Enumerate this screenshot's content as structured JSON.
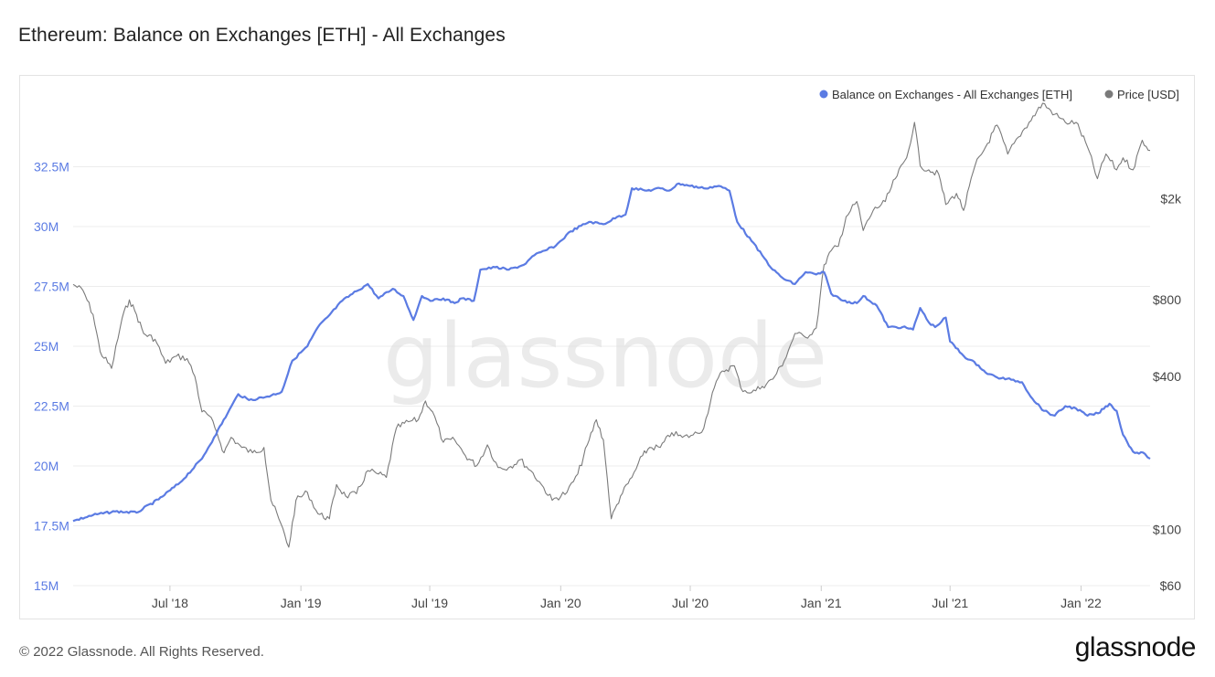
{
  "page": {
    "title": "Ethereum: Balance on Exchanges [ETH] - All Exchanges",
    "copyright": "© 2022 Glassnode. All Rights Reserved.",
    "logo": "glassnode",
    "watermark": "glassnode"
  },
  "colors": {
    "balance": "#5b7be3",
    "price": "#7a7a7a",
    "grid": "#ececec",
    "left_tick": "#5b7be3",
    "right_tick": "#444444"
  },
  "chart_data": {
    "type": "line",
    "title": "Ethereum: Balance on Exchanges [ETH] - All Exchanges",
    "legend_position": "top-right",
    "grid": true,
    "x_ticks": [
      "Jul '18",
      "Jan '19",
      "Jul '19",
      "Jan '20",
      "Jul '20",
      "Jan '21",
      "Jul '21",
      "Jan '22"
    ],
    "x_tick_dates": [
      "2018-07-01",
      "2019-01-01",
      "2019-07-01",
      "2020-01-01",
      "2020-07-01",
      "2021-01-01",
      "2021-07-01",
      "2022-01-01"
    ],
    "x_range": [
      "2018-02-15",
      "2022-04-08"
    ],
    "y_left": {
      "unit": "ETH",
      "range": [
        15000000,
        35000000
      ],
      "ticks": [
        15000000,
        17500000,
        20000000,
        22500000,
        25000000,
        27500000,
        30000000,
        32500000
      ],
      "tick_labels": [
        "15M",
        "17.5M",
        "20M",
        "22.5M",
        "25M",
        "27.5M",
        "30M",
        "32.5M"
      ]
    },
    "y_right": {
      "unit": "USD",
      "scale": "log",
      "range": [
        60,
        4600
      ],
      "ticks": [
        60,
        100,
        400,
        800,
        2000
      ],
      "tick_labels": [
        "$60",
        "$100",
        "$400",
        "$800",
        "$2k"
      ]
    },
    "series": [
      {
        "name": "Balance on Exchanges - All Exchanges [ETH]",
        "axis": "left",
        "points": [
          [
            "2018-02-15",
            17700000
          ],
          [
            "2018-03-15",
            17950000
          ],
          [
            "2018-04-15",
            18100000
          ],
          [
            "2018-05-15",
            18050000
          ],
          [
            "2018-06-15",
            18600000
          ],
          [
            "2018-07-15",
            19300000
          ],
          [
            "2018-08-15",
            20300000
          ],
          [
            "2018-09-01",
            21200000
          ],
          [
            "2018-09-20",
            22200000
          ],
          [
            "2018-10-05",
            23000000
          ],
          [
            "2018-10-20",
            22750000
          ],
          [
            "2018-11-15",
            22900000
          ],
          [
            "2018-12-05",
            23100000
          ],
          [
            "2018-12-20",
            24400000
          ],
          [
            "2019-01-10",
            25000000
          ],
          [
            "2019-01-25",
            25800000
          ],
          [
            "2019-02-10",
            26300000
          ],
          [
            "2019-02-28",
            26900000
          ],
          [
            "2019-03-20",
            27300000
          ],
          [
            "2019-04-05",
            27600000
          ],
          [
            "2019-04-20",
            27000000
          ],
          [
            "2019-05-10",
            27400000
          ],
          [
            "2019-05-25",
            27100000
          ],
          [
            "2019-06-08",
            26100000
          ],
          [
            "2019-06-20",
            27100000
          ],
          [
            "2019-07-05",
            26900000
          ],
          [
            "2019-07-20",
            27000000
          ],
          [
            "2019-08-05",
            26800000
          ],
          [
            "2019-08-15",
            27000000
          ],
          [
            "2019-09-01",
            26900000
          ],
          [
            "2019-09-10",
            28200000
          ],
          [
            "2019-10-01",
            28300000
          ],
          [
            "2019-10-20",
            28200000
          ],
          [
            "2019-11-10",
            28400000
          ],
          [
            "2019-11-25",
            28800000
          ],
          [
            "2019-12-10",
            29000000
          ],
          [
            "2019-12-25",
            29200000
          ],
          [
            "2020-01-15",
            29800000
          ],
          [
            "2020-02-10",
            30200000
          ],
          [
            "2020-03-01",
            30100000
          ],
          [
            "2020-03-20",
            30400000
          ],
          [
            "2020-04-01",
            30500000
          ],
          [
            "2020-04-10",
            31600000
          ],
          [
            "2020-05-01",
            31500000
          ],
          [
            "2020-05-20",
            31600000
          ],
          [
            "2020-06-01",
            31500000
          ],
          [
            "2020-06-15",
            31800000
          ],
          [
            "2020-07-01",
            31700000
          ],
          [
            "2020-07-20",
            31600000
          ],
          [
            "2020-08-10",
            31700000
          ],
          [
            "2020-08-25",
            31500000
          ],
          [
            "2020-09-05",
            30200000
          ],
          [
            "2020-09-25",
            29400000
          ],
          [
            "2020-10-10",
            28800000
          ],
          [
            "2020-10-25",
            28200000
          ],
          [
            "2020-11-10",
            27800000
          ],
          [
            "2020-11-25",
            27600000
          ],
          [
            "2020-12-10",
            28100000
          ],
          [
            "2020-12-25",
            28000000
          ],
          [
            "2021-01-05",
            28100000
          ],
          [
            "2021-01-15",
            27200000
          ],
          [
            "2021-02-01",
            26900000
          ],
          [
            "2021-02-20",
            26800000
          ],
          [
            "2021-03-01",
            27100000
          ],
          [
            "2021-03-20",
            26700000
          ],
          [
            "2021-04-05",
            25800000
          ],
          [
            "2021-04-25",
            25800000
          ],
          [
            "2021-05-10",
            25700000
          ],
          [
            "2021-05-20",
            26600000
          ],
          [
            "2021-06-01",
            26000000
          ],
          [
            "2021-06-10",
            25800000
          ],
          [
            "2021-06-25",
            26200000
          ],
          [
            "2021-07-01",
            25200000
          ],
          [
            "2021-07-20",
            24600000
          ],
          [
            "2021-08-10",
            24200000
          ],
          [
            "2021-08-20",
            23900000
          ],
          [
            "2021-09-05",
            23700000
          ],
          [
            "2021-09-25",
            23600000
          ],
          [
            "2021-10-10",
            23500000
          ],
          [
            "2021-10-25",
            22800000
          ],
          [
            "2021-11-10",
            22300000
          ],
          [
            "2021-11-25",
            22100000
          ],
          [
            "2021-12-10",
            22500000
          ],
          [
            "2021-12-25",
            22400000
          ],
          [
            "2022-01-10",
            22100000
          ],
          [
            "2022-01-25",
            22200000
          ],
          [
            "2022-02-10",
            22600000
          ],
          [
            "2022-02-20",
            22300000
          ],
          [
            "2022-03-01",
            21300000
          ],
          [
            "2022-03-15",
            20600000
          ],
          [
            "2022-04-01",
            20500000
          ],
          [
            "2022-04-08",
            20300000
          ]
        ]
      },
      {
        "name": "Price [USD]",
        "axis": "right",
        "points": [
          [
            "2018-02-15",
            920
          ],
          [
            "2018-03-01",
            870
          ],
          [
            "2018-03-15",
            700
          ],
          [
            "2018-03-25",
            500
          ],
          [
            "2018-04-10",
            430
          ],
          [
            "2018-04-25",
            680
          ],
          [
            "2018-05-05",
            800
          ],
          [
            "2018-05-15",
            700
          ],
          [
            "2018-05-25",
            590
          ],
          [
            "2018-06-10",
            560
          ],
          [
            "2018-06-25",
            450
          ],
          [
            "2018-07-10",
            480
          ],
          [
            "2018-07-25",
            470
          ],
          [
            "2018-08-05",
            400
          ],
          [
            "2018-08-15",
            290
          ],
          [
            "2018-08-25",
            280
          ],
          [
            "2018-09-05",
            240
          ],
          [
            "2018-09-15",
            200
          ],
          [
            "2018-09-25",
            230
          ],
          [
            "2018-10-10",
            210
          ],
          [
            "2018-10-25",
            200
          ],
          [
            "2018-11-10",
            210
          ],
          [
            "2018-11-20",
            130
          ],
          [
            "2018-12-01",
            110
          ],
          [
            "2018-12-15",
            85
          ],
          [
            "2018-12-25",
            130
          ],
          [
            "2019-01-10",
            140
          ],
          [
            "2019-01-25",
            115
          ],
          [
            "2019-02-10",
            110
          ],
          [
            "2019-02-20",
            150
          ],
          [
            "2019-03-05",
            135
          ],
          [
            "2019-03-20",
            138
          ],
          [
            "2019-04-05",
            170
          ],
          [
            "2019-04-20",
            165
          ],
          [
            "2019-05-01",
            160
          ],
          [
            "2019-05-15",
            250
          ],
          [
            "2019-06-01",
            265
          ],
          [
            "2019-06-15",
            270
          ],
          [
            "2019-06-25",
            320
          ],
          [
            "2019-07-05",
            290
          ],
          [
            "2019-07-20",
            220
          ],
          [
            "2019-08-05",
            225
          ],
          [
            "2019-08-20",
            195
          ],
          [
            "2019-09-05",
            178
          ],
          [
            "2019-09-20",
            215
          ],
          [
            "2019-10-05",
            175
          ],
          [
            "2019-10-20",
            175
          ],
          [
            "2019-11-05",
            188
          ],
          [
            "2019-11-20",
            170
          ],
          [
            "2019-12-05",
            150
          ],
          [
            "2019-12-20",
            130
          ],
          [
            "2020-01-10",
            140
          ],
          [
            "2020-01-25",
            165
          ],
          [
            "2020-02-10",
            225
          ],
          [
            "2020-02-20",
            270
          ],
          [
            "2020-03-01",
            225
          ],
          [
            "2020-03-12",
            110
          ],
          [
            "2020-03-25",
            135
          ],
          [
            "2020-04-10",
            160
          ],
          [
            "2020-04-25",
            195
          ],
          [
            "2020-05-05",
            210
          ],
          [
            "2020-05-20",
            210
          ],
          [
            "2020-06-05",
            240
          ],
          [
            "2020-06-20",
            230
          ],
          [
            "2020-07-05",
            235
          ],
          [
            "2020-07-20",
            250
          ],
          [
            "2020-08-01",
            345
          ],
          [
            "2020-08-15",
            420
          ],
          [
            "2020-09-01",
            440
          ],
          [
            "2020-09-10",
            360
          ],
          [
            "2020-09-25",
            345
          ],
          [
            "2020-10-10",
            365
          ],
          [
            "2020-10-25",
            390
          ],
          [
            "2020-11-10",
            460
          ],
          [
            "2020-11-25",
            590
          ],
          [
            "2020-12-10",
            570
          ],
          [
            "2020-12-25",
            620
          ],
          [
            "2021-01-05",
            1100
          ],
          [
            "2021-01-15",
            1250
          ],
          [
            "2021-01-25",
            1300
          ],
          [
            "2021-02-05",
            1700
          ],
          [
            "2021-02-20",
            1950
          ],
          [
            "2021-03-01",
            1500
          ],
          [
            "2021-03-15",
            1800
          ],
          [
            "2021-04-01",
            1950
          ],
          [
            "2021-04-15",
            2400
          ],
          [
            "2021-05-01",
            2900
          ],
          [
            "2021-05-12",
            4000
          ],
          [
            "2021-05-20",
            2700
          ],
          [
            "2021-06-01",
            2600
          ],
          [
            "2021-06-15",
            2500
          ],
          [
            "2021-06-25",
            1900
          ],
          [
            "2021-07-10",
            2100
          ],
          [
            "2021-07-20",
            1800
          ],
          [
            "2021-08-05",
            2700
          ],
          [
            "2021-08-20",
            3200
          ],
          [
            "2021-09-05",
            3900
          ],
          [
            "2021-09-20",
            3000
          ],
          [
            "2021-10-05",
            3500
          ],
          [
            "2021-10-20",
            4000
          ],
          [
            "2021-11-08",
            4750
          ],
          [
            "2021-11-25",
            4300
          ],
          [
            "2021-12-10",
            4000
          ],
          [
            "2021-12-25",
            4000
          ],
          [
            "2022-01-10",
            3200
          ],
          [
            "2022-01-24",
            2400
          ],
          [
            "2022-02-05",
            3000
          ],
          [
            "2022-02-20",
            2600
          ],
          [
            "2022-03-01",
            2900
          ],
          [
            "2022-03-15",
            2600
          ],
          [
            "2022-03-28",
            3400
          ],
          [
            "2022-04-08",
            3100
          ]
        ]
      }
    ]
  }
}
